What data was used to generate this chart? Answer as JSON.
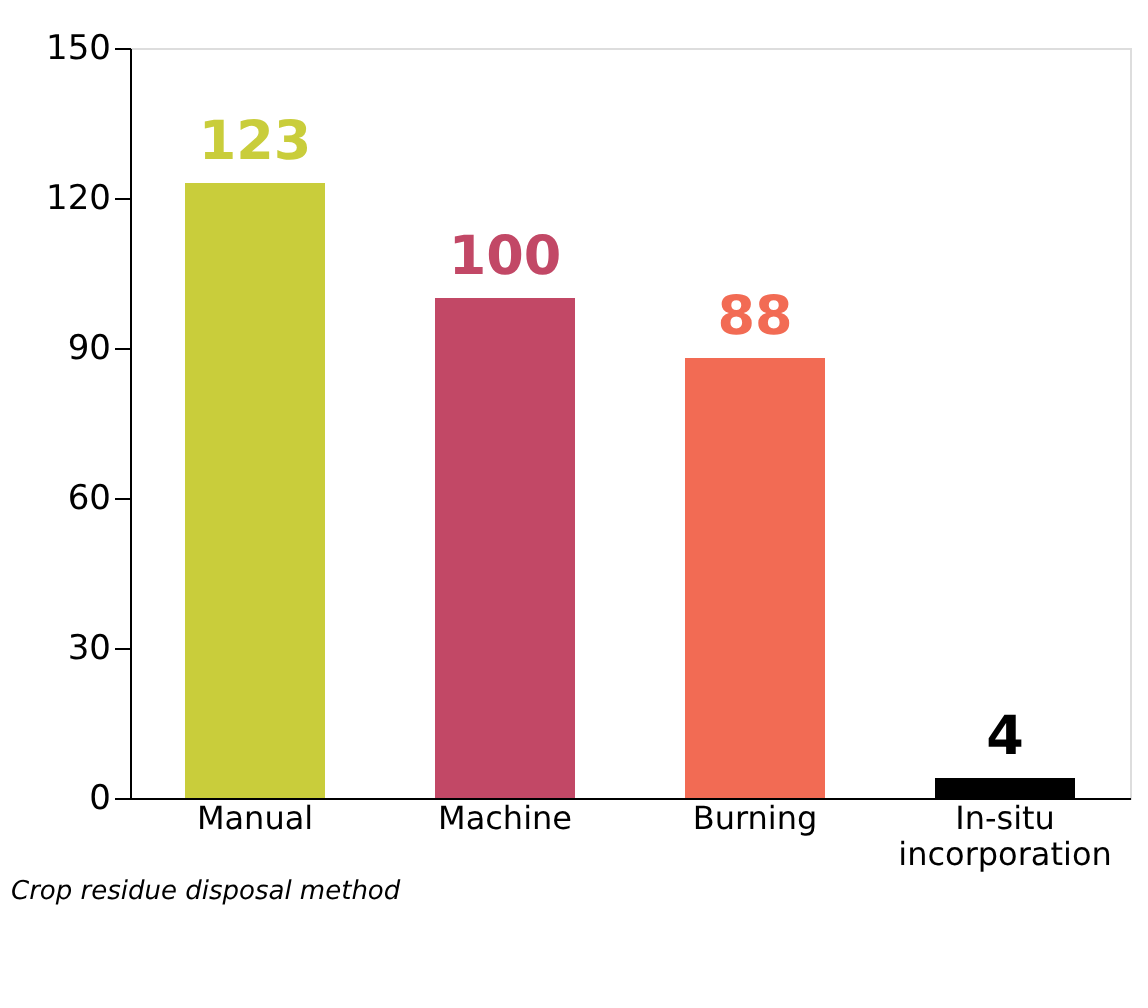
{
  "chart_data": {
    "type": "bar",
    "xlabel": "Crop residue disposal method",
    "categories": [
      "Manual",
      "Machine",
      "Burning",
      "In-situ incorporation"
    ],
    "values": [
      123,
      100,
      88,
      4
    ],
    "colors": [
      "#c9cd3b",
      "#c24866",
      "#f26b54",
      "#000000"
    ],
    "ylim": [
      0,
      150
    ],
    "yticks": [
      0,
      30,
      60,
      90,
      120,
      150
    ],
    "grid": false,
    "data_labels": true
  }
}
